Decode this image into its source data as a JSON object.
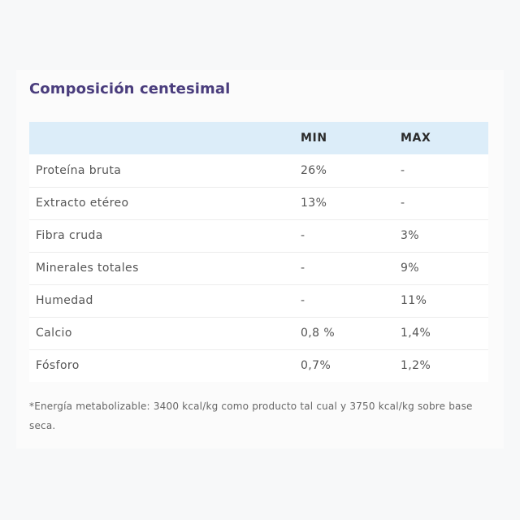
{
  "section": {
    "title": "Composición centesimal"
  },
  "table": {
    "headers": [
      "",
      "MIN",
      "MAX"
    ],
    "rows": [
      [
        "Proteína bruta",
        "26%",
        "-"
      ],
      [
        "Extracto etéreo",
        "13%",
        "-"
      ],
      [
        "Fibra cruda",
        "-",
        "3%"
      ],
      [
        "Minerales totales",
        "-",
        "9%"
      ],
      [
        "Humedad",
        "-",
        "11%"
      ],
      [
        "Calcio",
        "0,8 %",
        "1,4%"
      ],
      [
        "Fósforo",
        "0,7%",
        "1,2%"
      ]
    ]
  },
  "footnote": "*Energía metabolizable: 3400 kcal/kg como producto tal cual y 3750 kcal/kg sobre base seca.",
  "colors": {
    "title": "#4a3d7d",
    "header_bg": "#dcedf9",
    "row_bg": "#ffffff",
    "page_bg": "#f7f8f9"
  }
}
